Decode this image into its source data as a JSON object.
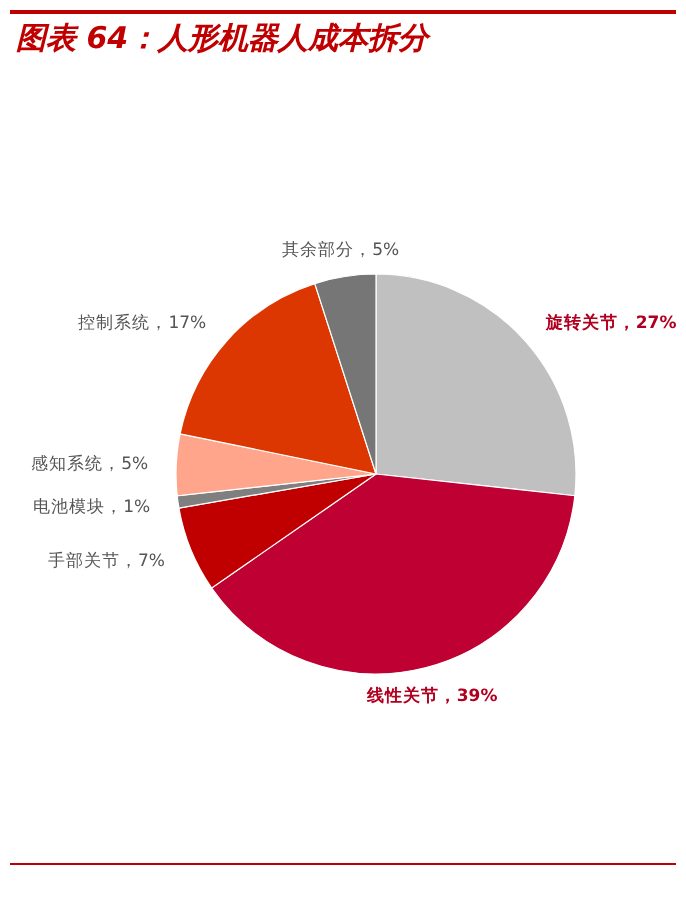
{
  "chart_data": {
    "type": "pie",
    "title": "图表 64：人形机器人成本拆分",
    "categories": [
      "旋转关节",
      "线性关节",
      "手部关节",
      "电池模块",
      "感知系统",
      "控制系统",
      "其余部分"
    ],
    "values": [
      27,
      39,
      7,
      1,
      5,
      17,
      5
    ],
    "value_labels": [
      "27%",
      "39%",
      "7%",
      "1%",
      "5%",
      "17%",
      "5%"
    ],
    "colors": [
      "#c0c0c0",
      "#bf0032",
      "#c00000",
      "#7f7f7f",
      "#ffa58c",
      "#dc3700",
      "#767676"
    ]
  }
}
